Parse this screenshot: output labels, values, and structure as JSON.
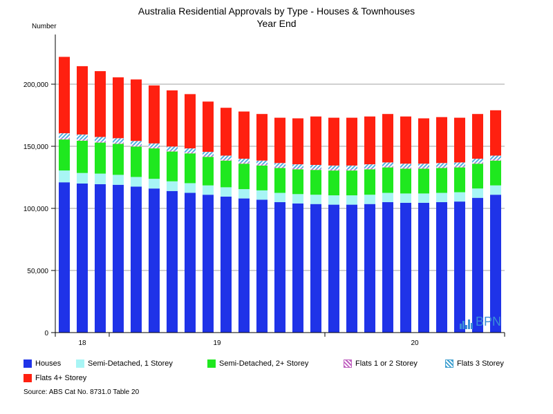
{
  "chart_data": {
    "type": "bar",
    "stacked": true,
    "title": "Australia Residential Approvals by Type - Houses & Townhouses",
    "subtitle": "Year End",
    "ylabel": "Number",
    "xlabel": "",
    "ylim": [
      0,
      240000
    ],
    "yticks": [
      0,
      50000,
      100000,
      150000,
      200000
    ],
    "ytick_labels": [
      "0",
      "50,000",
      "100,000",
      "150,000",
      "200,000"
    ],
    "x_group_labels": [
      {
        "label": "18",
        "start": 0,
        "end": 3
      },
      {
        "label": "19",
        "start": 3,
        "end": 15
      },
      {
        "label": "20",
        "start": 15,
        "end": 25
      }
    ],
    "series": [
      {
        "name": "Houses",
        "color": "#1f33e8",
        "values": [
          121000,
          120000,
          119500,
          119000,
          117500,
          116000,
          114000,
          112500,
          111000,
          109500,
          108000,
          107000,
          105000,
          104000,
          103500,
          103000,
          103000,
          103500,
          105000,
          104500,
          104500,
          105000,
          105500,
          108500,
          111000
        ]
      },
      {
        "name": "Semi-Detached, 1 Storey",
        "color": "#a8f5f5",
        "values": [
          9500,
          8500,
          8500,
          8000,
          7800,
          7800,
          7800,
          7800,
          7500,
          7500,
          7500,
          7500,
          7500,
          7500,
          7500,
          7500,
          7500,
          7500,
          7500,
          7500,
          7500,
          7500,
          7500,
          7500,
          7500
        ]
      },
      {
        "name": "Semi-Detached, 2+ Storey",
        "color": "#1fe81f",
        "values": [
          25000,
          26000,
          25000,
          25000,
          24500,
          24500,
          24000,
          24000,
          23000,
          21500,
          20500,
          20000,
          20000,
          20000,
          20000,
          20000,
          20000,
          20500,
          20500,
          20000,
          20000,
          20000,
          20000,
          20000,
          20000
        ]
      },
      {
        "name": "Flats 1 or 2 Storey",
        "color": "#d070d0",
        "pattern": "hatch",
        "values": [
          1000,
          1000,
          1000,
          1000,
          1000,
          1000,
          1000,
          1000,
          1000,
          1000,
          1000,
          1000,
          1000,
          1000,
          1000,
          1000,
          1000,
          1000,
          1000,
          1000,
          1000,
          1000,
          1000,
          1000,
          1000
        ]
      },
      {
        "name": "Flats 3 Storey",
        "color": "#50b0e0",
        "pattern": "hatch",
        "values": [
          4000,
          4000,
          3500,
          3500,
          3500,
          3000,
          3000,
          3000,
          3000,
          3000,
          3000,
          3000,
          3000,
          3000,
          3000,
          3000,
          3000,
          3000,
          3000,
          3000,
          3000,
          3000,
          3000,
          3000,
          3000
        ]
      },
      {
        "name": "Flats 4+ Storey",
        "color": "#ff2010",
        "values": [
          61500,
          55000,
          53000,
          49000,
          49500,
          46700,
          45200,
          43700,
          40500,
          38500,
          38000,
          37500,
          36500,
          37000,
          39000,
          38500,
          38500,
          38500,
          39000,
          38000,
          36500,
          37000,
          36000,
          36000,
          36500
        ]
      }
    ]
  },
  "legend": {
    "houses": "Houses",
    "semi1": "Semi-Detached, 1 Storey",
    "semi2": "Semi-Detached, 2+ Storey",
    "flats12": "Flats 1 or 2 Storey",
    "flats3": "Flats 3 Storey",
    "flats4": "Flats 4+ Storey"
  },
  "source": "Source: ABS Cat No. 8731.0 Table 20",
  "watermark": "BPN"
}
